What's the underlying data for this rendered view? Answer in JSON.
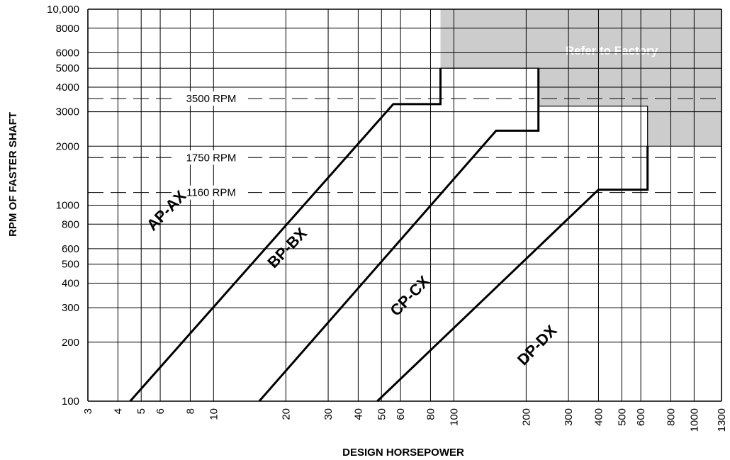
{
  "chart_data": {
    "type": "line",
    "xlabel": "DESIGN HORSEPOWER",
    "ylabel": "RPM OF FASTER SHAFT",
    "x_scale": "log",
    "y_scale": "log",
    "xlim": [
      3,
      1300
    ],
    "ylim": [
      100,
      10000
    ],
    "grid": true,
    "x_ticks": [
      3,
      4,
      5,
      6,
      8,
      10,
      20,
      30,
      40,
      50,
      60,
      80,
      100,
      200,
      300,
      400,
      500,
      600,
      800,
      1000,
      1300
    ],
    "x_tick_labels": [
      "3",
      "4",
      "5",
      "6",
      "8",
      "10",
      "20",
      "30",
      "40",
      "50",
      "60",
      "80",
      "100",
      "200",
      "300",
      "400",
      "500",
      "600",
      "800",
      "1000",
      "1300"
    ],
    "y_ticks": [
      100,
      200,
      300,
      400,
      500,
      600,
      800,
      1000,
      2000,
      3000,
      4000,
      5000,
      6000,
      8000,
      10000
    ],
    "y_tick_labels": [
      "100",
      "200",
      "300",
      "400",
      "500",
      "600",
      "800",
      "1000",
      "2000",
      "3000",
      "4000",
      "5000",
      "6000",
      "8000",
      "10,000"
    ],
    "series": [
      {
        "name": "AP-AX",
        "x": [
          4.5,
          56,
          88,
          88
        ],
        "y": [
          100,
          3280,
          3280,
          5000
        ]
      },
      {
        "name": "BP-BX",
        "x": [
          15.5,
          150,
          225,
          225
        ],
        "y": [
          100,
          2400,
          2400,
          5000
        ]
      },
      {
        "name": "CP-CX",
        "x": [
          48,
          400,
          640,
          640
        ],
        "y": [
          100,
          1200,
          1200,
          2000
        ]
      },
      {
        "name": "DP-DX",
        "x": [],
        "y": []
      }
    ],
    "reference_lines": [
      {
        "label": "3500 RPM",
        "y": 3500
      },
      {
        "label": "1750 RPM",
        "y": 1750
      },
      {
        "label": "1160 RPM",
        "y": 1160
      }
    ],
    "zone": {
      "label": "Refer to Factory",
      "color": "#cccccc",
      "x": [
        88,
        1300,
        1300,
        640,
        640,
        225,
        225,
        88
      ],
      "y": [
        10000,
        10000,
        2000,
        2000,
        3200,
        3200,
        5000,
        5000
      ]
    },
    "section_lines": [
      {
        "x": [
          88,
          225,
          225
        ],
        "y": [
          5000,
          5000,
          3200
        ]
      },
      {
        "x": [
          225,
          640,
          640
        ],
        "y": [
          3200,
          3200,
          2000
        ]
      }
    ],
    "series_labels": [
      {
        "text": "AP-AX",
        "x": 6.6,
        "y": 900
      },
      {
        "text": "BP-BX",
        "x": 21,
        "y": 580
      },
      {
        "text": "CP-CX",
        "x": 68,
        "y": 330
      },
      {
        "text": "DP-DX",
        "x": 230,
        "y": 185
      }
    ]
  }
}
